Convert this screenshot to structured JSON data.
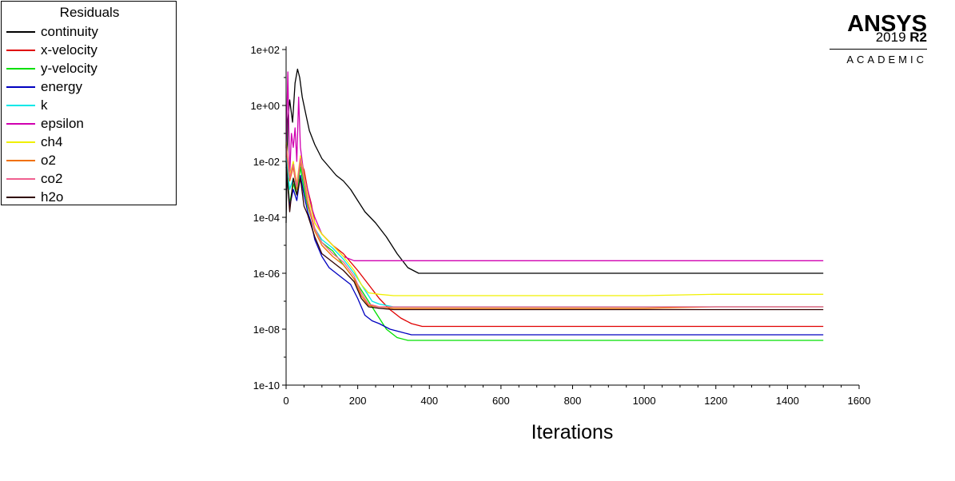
{
  "legend": {
    "title": "Residuals",
    "items": [
      {
        "label": "continuity",
        "color": "#000000"
      },
      {
        "label": "x-velocity",
        "color": "#e00000"
      },
      {
        "label": "y-velocity",
        "color": "#00e000"
      },
      {
        "label": "energy",
        "color": "#0000c0"
      },
      {
        "label": "k",
        "color": "#00e8e8"
      },
      {
        "label": "epsilon",
        "color": "#d000b0"
      },
      {
        "label": "ch4",
        "color": "#f0f000"
      },
      {
        "label": "o2",
        "color": "#f07000"
      },
      {
        "label": "co2",
        "color": "#f06090"
      },
      {
        "label": "h2o",
        "color": "#300000"
      }
    ]
  },
  "logo": {
    "name": "ANSYS",
    "version_year": "2019",
    "version_release": "R2",
    "edition": "ACADEMIC"
  },
  "chart_data": {
    "type": "line",
    "xlabel": "Iterations",
    "ylabel": "",
    "xlim": [
      0,
      1600
    ],
    "ylim": [
      1e-10,
      100
    ],
    "yscale": "log",
    "xticks": [
      "0",
      "200",
      "400",
      "600",
      "800",
      "1000",
      "1200",
      "1400",
      "1600"
    ],
    "xtick_values": [
      0,
      200,
      400,
      600,
      800,
      1000,
      1200,
      1400,
      1600
    ],
    "yticks": [
      "1e-10",
      "1e-08",
      "1e-06",
      "1e-04",
      "1e-02",
      "1e+00",
      "1e+02"
    ],
    "ytick_values": [
      -10,
      -8,
      -6,
      -4,
      -2,
      0,
      2
    ],
    "series": [
      {
        "name": "continuity",
        "color": "#000000",
        "x": [
          0,
          5,
          10,
          18,
          25,
          32,
          38,
          45,
          55,
          65,
          80,
          100,
          120,
          140,
          160,
          180,
          200,
          220,
          250,
          280,
          310,
          340,
          370,
          400,
          600,
          800,
          1000,
          1200,
          1400,
          1500
        ],
        "y": [
          -4.2,
          -0.5,
          0.2,
          -0.6,
          0.8,
          1.3,
          1.0,
          0.3,
          -0.3,
          -0.9,
          -1.4,
          -1.9,
          -2.2,
          -2.5,
          -2.7,
          -3.0,
          -3.4,
          -3.8,
          -4.2,
          -4.7,
          -5.3,
          -5.8,
          -6.0,
          -6.0,
          -6.0,
          -6.0,
          -6.0,
          -6.0,
          -6.0,
          -6.0
        ]
      },
      {
        "name": "x-velocity",
        "color": "#e00000",
        "x": [
          0,
          10,
          20,
          30,
          40,
          50,
          60,
          70,
          80,
          100,
          130,
          160,
          200,
          230,
          260,
          290,
          320,
          350,
          380,
          400,
          600,
          800,
          1000,
          1200,
          1400,
          1500
        ],
        "y": [
          -1.5,
          -2.5,
          -2.2,
          -3.0,
          -2.0,
          -2.3,
          -3.0,
          -3.5,
          -4.2,
          -4.6,
          -5.0,
          -5.3,
          -5.9,
          -6.4,
          -6.9,
          -7.3,
          -7.6,
          -7.8,
          -7.9,
          -7.9,
          -7.9,
          -7.9,
          -7.9,
          -7.9,
          -7.9,
          -7.9
        ]
      },
      {
        "name": "y-velocity",
        "color": "#00e000",
        "x": [
          0,
          10,
          20,
          30,
          40,
          50,
          60,
          70,
          80,
          100,
          130,
          160,
          190,
          220,
          250,
          280,
          310,
          340,
          370,
          400,
          600,
          800,
          1000,
          1200,
          1400,
          1500
        ],
        "y": [
          -2.0,
          -3.5,
          -2.8,
          -3.2,
          -2.2,
          -3.0,
          -3.6,
          -4.0,
          -4.4,
          -4.9,
          -5.2,
          -5.7,
          -6.2,
          -6.8,
          -7.4,
          -8.0,
          -8.3,
          -8.4,
          -8.4,
          -8.4,
          -8.4,
          -8.4,
          -8.4,
          -8.4,
          -8.4,
          -8.4
        ]
      },
      {
        "name": "energy",
        "color": "#0000c0",
        "x": [
          0,
          10,
          20,
          30,
          40,
          50,
          60,
          70,
          80,
          100,
          120,
          150,
          180,
          200,
          220,
          240,
          260,
          290,
          320,
          350,
          380,
          400,
          600,
          800,
          1000,
          1200,
          1400,
          1500
        ],
        "y": [
          -2.2,
          -3.6,
          -3.0,
          -3.4,
          -2.5,
          -3.2,
          -3.8,
          -4.2,
          -4.8,
          -5.4,
          -5.8,
          -6.1,
          -6.4,
          -6.9,
          -7.5,
          -7.7,
          -7.8,
          -8.0,
          -8.1,
          -8.2,
          -8.2,
          -8.2,
          -8.2,
          -8.2,
          -8.2,
          -8.2,
          -8.2,
          -8.2
        ]
      },
      {
        "name": "k",
        "color": "#00e8e8",
        "x": [
          0,
          10,
          20,
          30,
          40,
          50,
          60,
          70,
          80,
          100,
          130,
          160,
          190,
          220,
          240,
          260,
          300,
          400,
          600,
          800,
          1000,
          1200,
          1400,
          1500
        ],
        "y": [
          -1.8,
          -3.0,
          -2.6,
          -3.0,
          -2.0,
          -2.8,
          -3.5,
          -4.0,
          -4.4,
          -4.8,
          -5.1,
          -5.5,
          -6.0,
          -6.6,
          -7.0,
          -7.1,
          -7.2,
          -7.2,
          -7.2,
          -7.2,
          -7.2,
          -7.2,
          -7.2,
          -7.2
        ]
      },
      {
        "name": "epsilon",
        "color": "#d000b0",
        "x": [
          0,
          5,
          10,
          15,
          20,
          25,
          30,
          35,
          40,
          45,
          50,
          60,
          70,
          80,
          100,
          130,
          160,
          190,
          220,
          260,
          300,
          400,
          600,
          800,
          1000,
          1200,
          1400,
          1500
        ],
        "y": [
          -1.5,
          1.2,
          -2.5,
          -1.0,
          -1.5,
          -0.8,
          -2.0,
          0.3,
          -1.5,
          -2.0,
          -2.5,
          -3.0,
          -3.6,
          -4.0,
          -4.6,
          -5.0,
          -5.4,
          -5.55,
          -5.55,
          -5.55,
          -5.55,
          -5.55,
          -5.55,
          -5.55,
          -5.55,
          -5.55,
          -5.55,
          -5.55
        ]
      },
      {
        "name": "ch4",
        "color": "#f0f000",
        "x": [
          0,
          10,
          20,
          30,
          40,
          50,
          60,
          70,
          80,
          100,
          130,
          160,
          190,
          210,
          230,
          260,
          300,
          400,
          600,
          800,
          1000,
          1200,
          1400,
          1500
        ],
        "y": [
          -1.3,
          -2.5,
          -2.0,
          -2.8,
          -1.8,
          -2.5,
          -3.2,
          -3.7,
          -4.2,
          -4.6,
          -5.0,
          -5.4,
          -5.9,
          -6.4,
          -6.7,
          -6.75,
          -6.8,
          -6.8,
          -6.8,
          -6.8,
          -6.8,
          -6.75,
          -6.75,
          -6.75
        ]
      },
      {
        "name": "o2",
        "color": "#f07000",
        "x": [
          0,
          10,
          20,
          30,
          40,
          50,
          60,
          70,
          80,
          100,
          130,
          160,
          190,
          210,
          230,
          260,
          300,
          400,
          600,
          800,
          1000,
          1200,
          1400,
          1500
        ],
        "y": [
          -1.5,
          -2.7,
          -2.2,
          -3.0,
          -2.0,
          -2.7,
          -3.5,
          -4.0,
          -4.5,
          -5.0,
          -5.4,
          -5.7,
          -6.2,
          -6.8,
          -7.15,
          -7.2,
          -7.25,
          -7.25,
          -7.25,
          -7.25,
          -7.25,
          -7.2,
          -7.2,
          -7.2
        ]
      },
      {
        "name": "co2",
        "color": "#f06090",
        "x": [
          0,
          10,
          20,
          30,
          40,
          50,
          60,
          70,
          80,
          100,
          130,
          160,
          190,
          210,
          230,
          260,
          300,
          400,
          600,
          800,
          1000,
          1200,
          1400,
          1500
        ],
        "y": [
          -1.4,
          -2.6,
          -2.1,
          -2.9,
          -1.9,
          -2.6,
          -3.4,
          -3.9,
          -4.4,
          -4.9,
          -5.3,
          -5.6,
          -6.1,
          -6.7,
          -7.1,
          -7.2,
          -7.2,
          -7.2,
          -7.2,
          -7.2,
          -7.2,
          -7.2,
          -7.2,
          -7.2
        ]
      },
      {
        "name": "h2o",
        "color": "#300000",
        "x": [
          0,
          10,
          20,
          30,
          40,
          50,
          60,
          70,
          80,
          100,
          130,
          160,
          190,
          210,
          230,
          260,
          300,
          400,
          600,
          800,
          1000,
          1200,
          1400,
          1500
        ],
        "y": [
          -2.0,
          -3.8,
          -2.6,
          -3.2,
          -2.6,
          -3.6,
          -3.9,
          -4.3,
          -4.7,
          -5.3,
          -5.6,
          -5.9,
          -6.3,
          -6.9,
          -7.2,
          -7.25,
          -7.3,
          -7.3,
          -7.3,
          -7.3,
          -7.3,
          -7.3,
          -7.3,
          -7.3
        ]
      }
    ]
  }
}
